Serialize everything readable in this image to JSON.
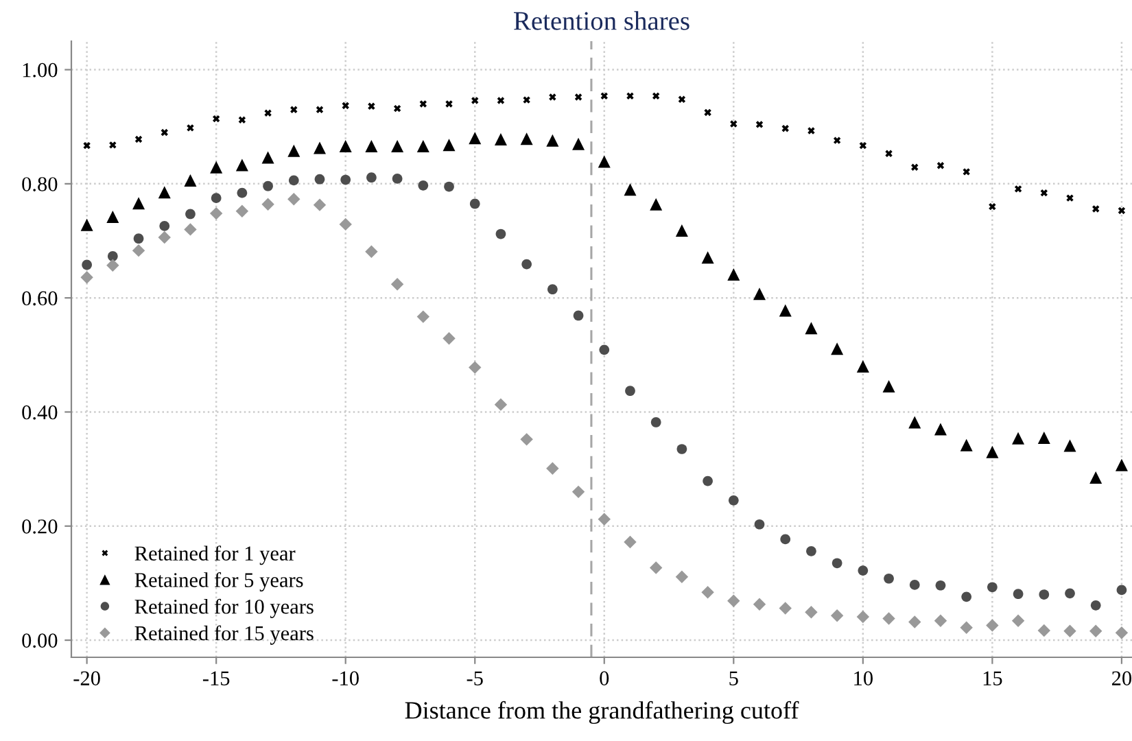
{
  "chart_data": {
    "type": "scatter",
    "title": "Retention shares",
    "xlabel": "Distance from the grandfathering cutoff",
    "x": [
      -20,
      -19,
      -18,
      -17,
      -16,
      -15,
      -14,
      -13,
      -12,
      -11,
      -10,
      -9,
      -8,
      -7,
      -6,
      -5,
      -4,
      -3,
      -2,
      -1,
      0,
      1,
      2,
      3,
      4,
      5,
      6,
      7,
      8,
      9,
      10,
      11,
      12,
      13,
      14,
      15,
      16,
      17,
      18,
      19,
      20
    ],
    "series": [
      {
        "name": "Retained for 1 year",
        "color": "#000000",
        "marker": "cross",
        "values": [
          0.867,
          0.868,
          0.878,
          0.89,
          0.898,
          0.914,
          0.912,
          0.924,
          0.93,
          0.93,
          0.937,
          0.936,
          0.932,
          0.94,
          0.94,
          0.946,
          0.946,
          0.947,
          0.952,
          0.952,
          0.954,
          0.954,
          0.954,
          0.948,
          0.925,
          0.905,
          0.904,
          0.897,
          0.893,
          0.876,
          0.867,
          0.853,
          0.829,
          0.832,
          0.821,
          0.76,
          0.791,
          0.784,
          0.775,
          0.756,
          0.753
        ]
      },
      {
        "name": "Retained for 5 years",
        "color": "#000000",
        "marker": "triangle",
        "values": [
          0.728,
          0.742,
          0.766,
          0.785,
          0.806,
          0.829,
          0.833,
          0.846,
          0.858,
          0.863,
          0.866,
          0.866,
          0.866,
          0.866,
          0.868,
          0.88,
          0.878,
          0.879,
          0.876,
          0.87,
          0.839,
          0.79,
          0.764,
          0.718,
          0.671,
          0.641,
          0.607,
          0.578,
          0.547,
          0.511,
          0.48,
          0.445,
          0.382,
          0.37,
          0.342,
          0.33,
          0.354,
          0.355,
          0.341,
          0.285,
          0.307
        ]
      },
      {
        "name": "Retained for 10 years",
        "color": "#4d4d4d",
        "marker": "circle",
        "values": [
          0.658,
          0.673,
          0.704,
          0.726,
          0.747,
          0.775,
          0.784,
          0.796,
          0.806,
          0.808,
          0.807,
          0.811,
          0.809,
          0.797,
          0.795,
          0.765,
          0.712,
          0.659,
          0.615,
          0.569,
          0.509,
          0.437,
          0.382,
          0.335,
          0.279,
          0.245,
          0.203,
          0.177,
          0.156,
          0.135,
          0.122,
          0.108,
          0.097,
          0.096,
          0.076,
          0.093,
          0.081,
          0.08,
          0.082,
          0.061,
          0.088
        ]
      },
      {
        "name": "Retained for 15 years",
        "color": "#999999",
        "marker": "diamond",
        "values": [
          0.636,
          0.657,
          0.683,
          0.706,
          0.72,
          0.748,
          0.752,
          0.764,
          0.773,
          0.763,
          0.729,
          0.681,
          0.624,
          0.567,
          0.529,
          0.478,
          0.413,
          0.352,
          0.301,
          0.26,
          0.212,
          0.172,
          0.127,
          0.111,
          0.084,
          0.069,
          0.063,
          0.056,
          0.049,
          0.043,
          0.041,
          0.038,
          0.032,
          0.034,
          0.022,
          0.026,
          0.034,
          0.017,
          0.016,
          0.016,
          0.013
        ]
      }
    ],
    "xlim": [
      -20.6,
      20.4
    ],
    "xticks": [
      -20,
      -15,
      -10,
      -5,
      0,
      5,
      10,
      15,
      20
    ],
    "ylim": [
      -0.03,
      1.05
    ],
    "yticks": [
      {
        "value": 0,
        "label": "0.00"
      },
      {
        "value": 0.2,
        "label": "0.20"
      },
      {
        "value": 0.4,
        "label": "0.40"
      },
      {
        "value": 0.6,
        "label": "0.60"
      },
      {
        "value": 0.8,
        "label": "0.80"
      },
      {
        "value": 1.0,
        "label": "1.00"
      }
    ],
    "ref_lines": [
      {
        "axis": "x",
        "value": -0.5,
        "color": "#a6a6a6",
        "line_style": "dashed"
      }
    ],
    "grid": true,
    "legend": "bottom left"
  }
}
